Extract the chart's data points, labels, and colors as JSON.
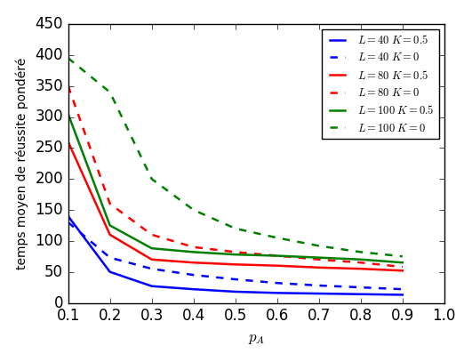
{
  "x": [
    0.1,
    0.2,
    0.3,
    0.4,
    0.5,
    0.6,
    0.7,
    0.8,
    0.9
  ],
  "L40_K05": [
    140,
    50,
    27,
    22,
    18,
    16,
    15,
    14,
    13
  ],
  "L40_K0": [
    130,
    73,
    55,
    45,
    38,
    32,
    28,
    25,
    22
  ],
  "L80_K05": [
    260,
    110,
    70,
    65,
    62,
    60,
    57,
    55,
    52
  ],
  "L80_K0": [
    350,
    160,
    110,
    90,
    82,
    76,
    70,
    65,
    58
  ],
  "L100_K05": [
    305,
    125,
    88,
    82,
    78,
    76,
    73,
    70,
    65
  ],
  "L100_K0": [
    395,
    340,
    200,
    150,
    120,
    105,
    92,
    82,
    75
  ],
  "xlabel": "$p_A$",
  "ylabel": "temps moyen de réussite pondéré",
  "ylim": [
    0,
    450
  ],
  "xlim": [
    0.1,
    1.0
  ],
  "yticks": [
    0,
    50,
    100,
    150,
    200,
    250,
    300,
    350,
    400,
    450
  ],
  "xticks": [
    0.1,
    0.2,
    0.3,
    0.4,
    0.5,
    0.6,
    0.7,
    0.8,
    0.9,
    1.0
  ],
  "legend": [
    {
      "label": "$L = 40 \\; K = 0.5$",
      "color": "blue",
      "ls": "-"
    },
    {
      "label": "$L = 40 \\; K = 0$",
      "color": "blue",
      "ls": "--"
    },
    {
      "label": "$L = 80 \\; K = 0.5$",
      "color": "red",
      "ls": "-"
    },
    {
      "label": "$L = 80 \\; K = 0$",
      "color": "red",
      "ls": "--"
    },
    {
      "label": "$L = 100 \\; K = 0.5$",
      "color": "green",
      "ls": "-"
    },
    {
      "label": "$L = 100 \\; K = 0$",
      "color": "green",
      "ls": "--"
    }
  ],
  "bg_color": "#ffffff",
  "linewidth": 1.8
}
